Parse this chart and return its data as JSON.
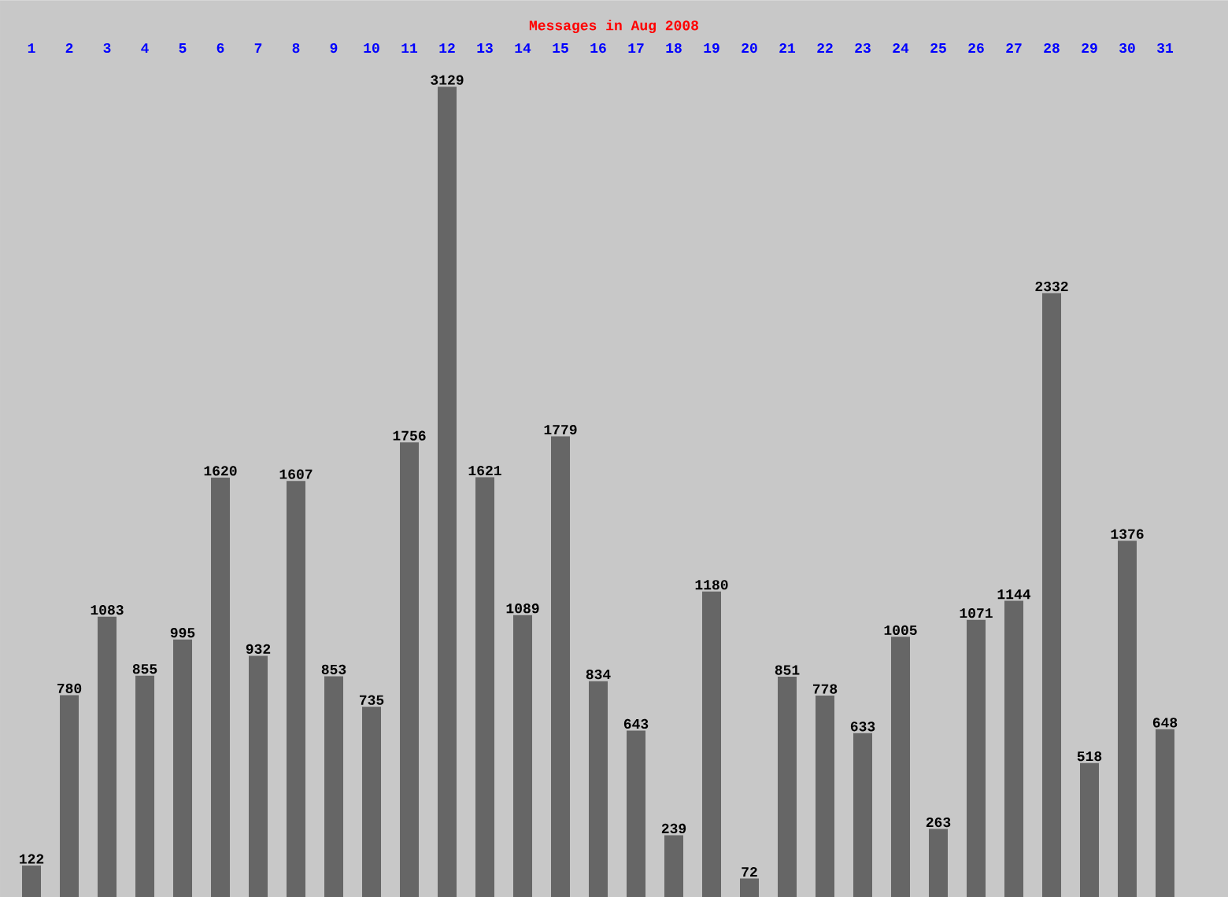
{
  "chart_data": {
    "type": "bar",
    "title": "Messages in Aug 2008",
    "categories": [
      "1",
      "2",
      "3",
      "4",
      "5",
      "6",
      "7",
      "8",
      "9",
      "10",
      "11",
      "12",
      "13",
      "14",
      "15",
      "16",
      "17",
      "18",
      "19",
      "20",
      "21",
      "22",
      "23",
      "24",
      "25",
      "26",
      "27",
      "28",
      "29",
      "30",
      "31"
    ],
    "values": [
      122,
      780,
      1083,
      855,
      995,
      1620,
      932,
      1607,
      853,
      735,
      1756,
      3129,
      1621,
      1089,
      1779,
      834,
      643,
      239,
      1180,
      72,
      851,
      778,
      633,
      1005,
      263,
      1071,
      1144,
      2332,
      518,
      1376,
      648
    ],
    "color": "#666666",
    "data_labels": true
  }
}
